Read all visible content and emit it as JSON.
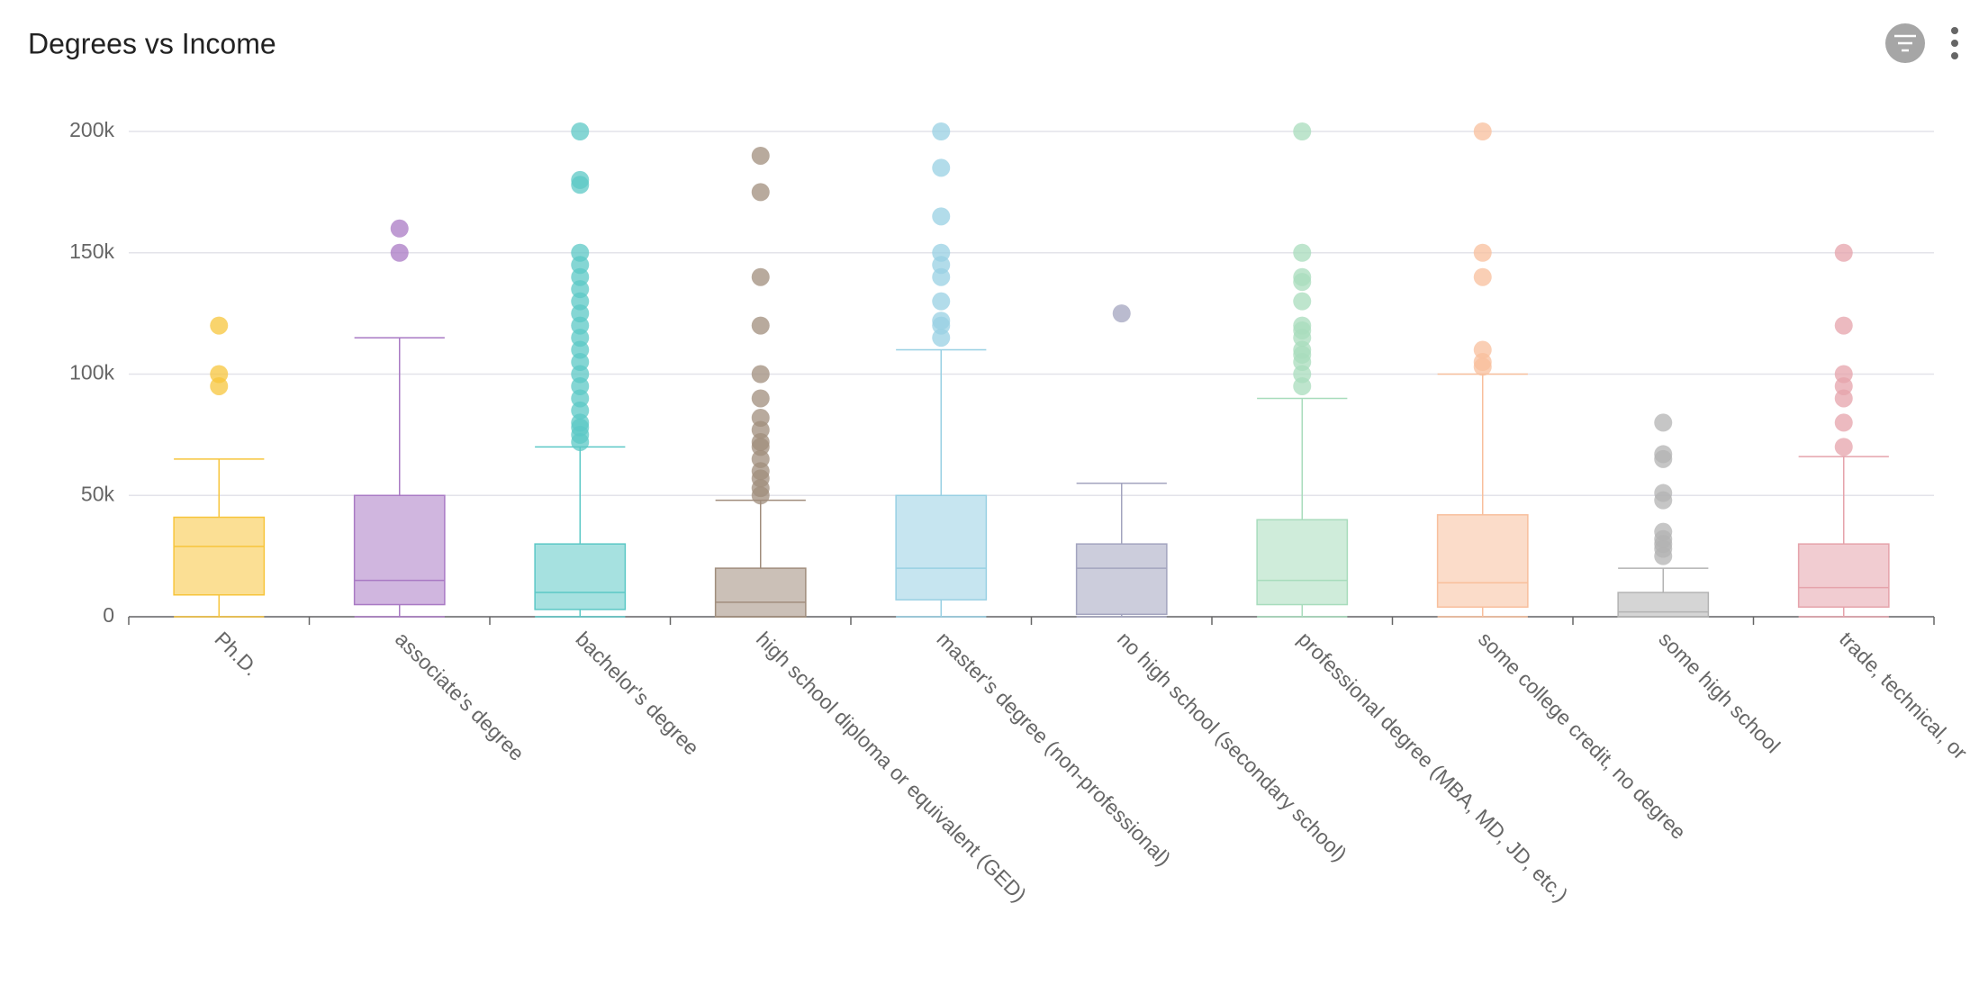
{
  "chart_data": {
    "type": "box",
    "title": "Degrees vs Income",
    "categories": [
      "Ph.D.",
      "associate's degree",
      "bachelor's degree",
      "high school diploma or equivalent (GED)",
      "master's degree (non-professional)",
      "no high school (secondary school)",
      "professional degree (MBA, MD, JD, etc.)",
      "some college credit, no degree",
      "some high school",
      "trade, technical, or"
    ],
    "boxes": [
      {
        "color": "#f7c53c",
        "min": 0,
        "q1": 9000,
        "median": 29000,
        "q3": 41000,
        "max": 65000,
        "outliers": [
          120000,
          100000,
          95000
        ]
      },
      {
        "color": "#a97ac4",
        "min": 0,
        "q1": 5000,
        "median": 15000,
        "q3": 50000,
        "max": 115000,
        "outliers": [
          160000,
          150000
        ]
      },
      {
        "color": "#5cc8c6",
        "min": 0,
        "q1": 3000,
        "median": 10000,
        "q3": 30000,
        "max": 70000,
        "outliers": [
          72000,
          75000,
          78000,
          80000,
          85000,
          90000,
          95000,
          100000,
          105000,
          110000,
          115000,
          120000,
          125000,
          130000,
          135000,
          140000,
          145000,
          150000,
          178000,
          180000,
          200000
        ]
      },
      {
        "color": "#a08d7c",
        "min": 0,
        "q1": 0,
        "median": 6000,
        "q3": 20000,
        "max": 48000,
        "outliers": [
          50000,
          53000,
          57000,
          60000,
          65000,
          70000,
          72000,
          77000,
          82000,
          90000,
          100000,
          120000,
          140000,
          175000,
          190000
        ]
      },
      {
        "color": "#98d0e3",
        "min": 0,
        "q1": 7000,
        "median": 20000,
        "q3": 50000,
        "max": 110000,
        "outliers": [
          115000,
          120000,
          122000,
          130000,
          140000,
          145000,
          150000,
          165000,
          185000,
          200000
        ]
      },
      {
        "color": "#a3a4bf",
        "min": 0,
        "q1": 1000,
        "median": 20000,
        "q3": 30000,
        "max": 55000,
        "outliers": [
          125000
        ]
      },
      {
        "color": "#a8dcbc",
        "min": 0,
        "q1": 5000,
        "median": 15000,
        "q3": 40000,
        "max": 90000,
        "outliers": [
          95000,
          100000,
          105000,
          108000,
          110000,
          115000,
          118000,
          120000,
          130000,
          138000,
          140000,
          150000,
          200000
        ]
      },
      {
        "color": "#f8bf9c",
        "min": 0,
        "q1": 4000,
        "median": 14000,
        "q3": 42000,
        "max": 100000,
        "outliers": [
          103000,
          105000,
          110000,
          140000,
          150000,
          200000
        ]
      },
      {
        "color": "#b3b3b3",
        "min": 0,
        "q1": 0,
        "median": 2000,
        "q3": 10000,
        "max": 20000,
        "outliers": [
          25000,
          28000,
          30000,
          32000,
          35000,
          48000,
          51000,
          65000,
          67000,
          80000
        ]
      },
      {
        "color": "#e5a3ab",
        "min": 0,
        "q1": 4000,
        "median": 12000,
        "q3": 30000,
        "max": 66000,
        "outliers": [
          70000,
          80000,
          90000,
          95000,
          100000,
          120000,
          150000
        ]
      }
    ],
    "ylim": [
      0,
      200000
    ],
    "yticks": [
      0,
      {
        "value": 50000,
        "label": "50k"
      },
      {
        "value": 100000,
        "label": "100k"
      },
      {
        "value": 150000,
        "label": "150k"
      },
      {
        "value": 200000,
        "label": "200k"
      }
    ],
    "grid": true
  }
}
